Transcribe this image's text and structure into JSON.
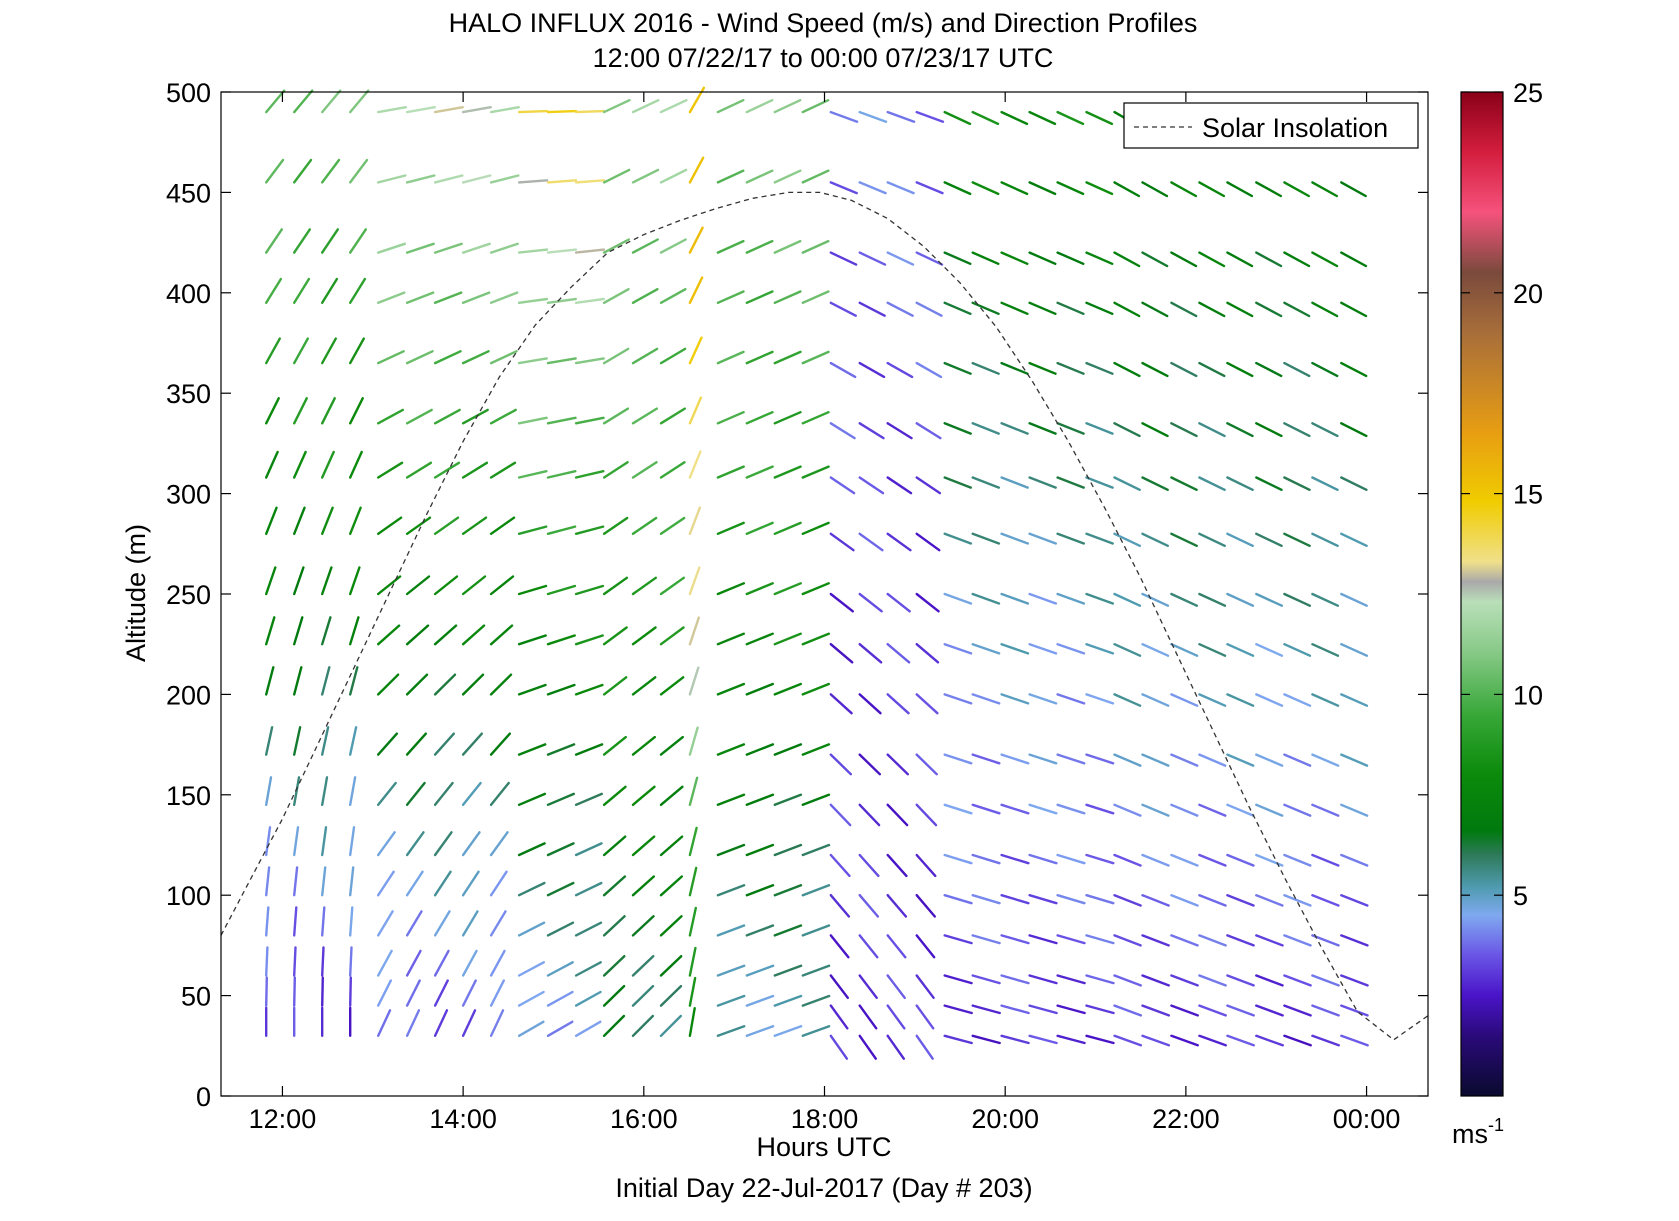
{
  "title": "HALO INFLUX 2016 - Wind Speed (m/s) and Direction Profiles",
  "subtitle": "12:00 07/22/17 to 00:00 07/23/17  UTC",
  "footer": "Initial Day 22-Jul-2017 (Day # 203)",
  "chart_data": {
    "type": "wind-barb-profile",
    "title": "HALO INFLUX 2016 - Wind Speed (m/s) and Direction Profiles",
    "subtitle": "12:00 07/22/17 to 00:00 07/23/17  UTC",
    "xlabel": "Hours UTC",
    "ylabel": "Altitude (m)",
    "x_ticks": [
      "12:00",
      "14:00",
      "16:00",
      "18:00",
      "20:00",
      "22:00",
      "00:00"
    ],
    "x_tick_hours": [
      12,
      14,
      16,
      18,
      20,
      22,
      24
    ],
    "xlim_hours": [
      11.32,
      24.68
    ],
    "y_ticks": [
      0,
      50,
      100,
      150,
      200,
      250,
      300,
      350,
      400,
      450,
      500
    ],
    "ylim": [
      0,
      500
    ],
    "grid": false,
    "legend": {
      "position": "top-right",
      "entries": [
        "Solar Insolation"
      ]
    },
    "colorbar": {
      "label": "ms",
      "label_exponent": "-1",
      "range": [
        0,
        25
      ],
      "ticks": [
        5,
        10,
        15,
        20,
        25
      ],
      "stops": [
        {
          "v": 0,
          "c": "#0a0a2e"
        },
        {
          "v": 1.5,
          "c": "#2a0a7a"
        },
        {
          "v": 2.5,
          "c": "#4a14c8"
        },
        {
          "v": 3.5,
          "c": "#6a55e6"
        },
        {
          "v": 4.5,
          "c": "#7fa9f0"
        },
        {
          "v": 5.2,
          "c": "#4f9bb0"
        },
        {
          "v": 6.0,
          "c": "#2e7a5a"
        },
        {
          "v": 6.6,
          "c": "#007a0e"
        },
        {
          "v": 8.0,
          "c": "#0b8a0b"
        },
        {
          "v": 9.5,
          "c": "#38a838"
        },
        {
          "v": 11.0,
          "c": "#85c885"
        },
        {
          "v": 12.3,
          "c": "#b9dfb9"
        },
        {
          "v": 12.8,
          "c": "#a9a9a9"
        },
        {
          "v": 13.3,
          "c": "#f0e08a"
        },
        {
          "v": 14.8,
          "c": "#f0cc00"
        },
        {
          "v": 16.5,
          "c": "#e89e12"
        },
        {
          "v": 19.0,
          "c": "#a86e3a"
        },
        {
          "v": 20.5,
          "c": "#7a4a3c"
        },
        {
          "v": 22.0,
          "c": "#f5527c"
        },
        {
          "v": 23.5,
          "c": "#d41e3e"
        },
        {
          "v": 25,
          "c": "#8a0018"
        }
      ]
    },
    "solar_insolation": {
      "name": "Solar Insolation",
      "hours": [
        11.32,
        11.6,
        12.0,
        12.4,
        12.8,
        13.2,
        13.6,
        14.0,
        14.4,
        14.8,
        15.2,
        15.6,
        16.0,
        16.4,
        16.8,
        17.2,
        17.6,
        17.95,
        18.3,
        18.7,
        19.1,
        19.5,
        19.9,
        20.3,
        20.7,
        21.1,
        21.5,
        21.9,
        22.3,
        22.7,
        23.1,
        23.5,
        23.9,
        24.3,
        24.68
      ],
      "altitude_m": [
        80,
        104,
        138,
        176,
        214,
        252,
        290,
        326,
        358,
        384,
        403,
        420,
        429,
        436,
        442,
        447,
        450,
        450,
        446,
        437,
        423,
        405,
        383,
        356,
        326,
        293,
        258,
        220,
        182,
        144,
        108,
        74,
        42,
        28,
        40
      ]
    },
    "barb_hours": [
      11.82,
      12.13,
      12.44,
      12.75,
      13.06,
      13.38,
      13.69,
      14.0,
      14.31,
      14.62,
      14.94,
      15.25,
      15.56,
      15.88,
      16.19,
      16.51,
      16.82,
      17.14,
      17.45,
      17.76,
      18.07,
      18.39,
      18.7,
      19.02,
      19.33,
      19.64,
      19.96,
      20.27,
      20.58,
      20.9,
      21.21,
      21.52,
      21.84,
      22.15,
      22.46,
      22.78,
      23.09,
      23.4,
      23.72
    ],
    "barb_altitudes_m": [
      30,
      45,
      60,
      80,
      100,
      120,
      145,
      170,
      200,
      225,
      250,
      280,
      308,
      335,
      365,
      395,
      420,
      455,
      490
    ],
    "wind_time_segments": [
      {
        "from_hour": 11.82,
        "to_hour": 12.9,
        "low_alt_direction_deg": 180,
        "high_alt_direction_deg": 220,
        "low_speed": 3,
        "mid_speed": 7.5,
        "high_speed": 10.5
      },
      {
        "from_hour": 12.9,
        "to_hour": 14.5,
        "low_alt_direction_deg": 205,
        "high_alt_direction_deg": 260,
        "low_speed": 3.5,
        "mid_speed": 8,
        "high_speed": 12.5
      },
      {
        "from_hour": 14.5,
        "to_hour": 15.5,
        "low_alt_direction_deg": 240,
        "high_alt_direction_deg": 268,
        "low_speed": 4.5,
        "mid_speed": 8.5,
        "high_speed": 14
      },
      {
        "from_hour": 15.5,
        "to_hour": 16.3,
        "low_alt_direction_deg": 225,
        "high_alt_direction_deg": 245,
        "low_speed": 6,
        "mid_speed": 9,
        "high_speed": 11.5
      },
      {
        "from_hour": 16.3,
        "to_hour": 16.6,
        "low_alt_direction_deg": 190,
        "high_alt_direction_deg": 210,
        "low_speed": 7.5,
        "mid_speed": 13.5,
        "high_speed": 15.5
      },
      {
        "from_hour": 16.6,
        "to_hour": 17.9,
        "low_alt_direction_deg": 250,
        "high_alt_direction_deg": 245,
        "low_speed": 5,
        "mid_speed": 8.5,
        "high_speed": 11
      },
      {
        "from_hour": 17.9,
        "to_hour": 19.2,
        "low_alt_direction_deg": 325,
        "high_alt_direction_deg": 290,
        "low_speed": 3,
        "mid_speed": 3,
        "high_speed": 4
      },
      {
        "from_hour": 19.2,
        "to_hour": 21.0,
        "low_alt_direction_deg": 285,
        "high_alt_direction_deg": 295,
        "low_speed": 3,
        "mid_speed": 5,
        "high_speed": 8
      },
      {
        "from_hour": 21.0,
        "to_hour": 23.72,
        "low_alt_direction_deg": 290,
        "high_alt_direction_deg": 300,
        "low_speed": 3,
        "mid_speed": 5.5,
        "high_speed": 7.5
      }
    ]
  }
}
